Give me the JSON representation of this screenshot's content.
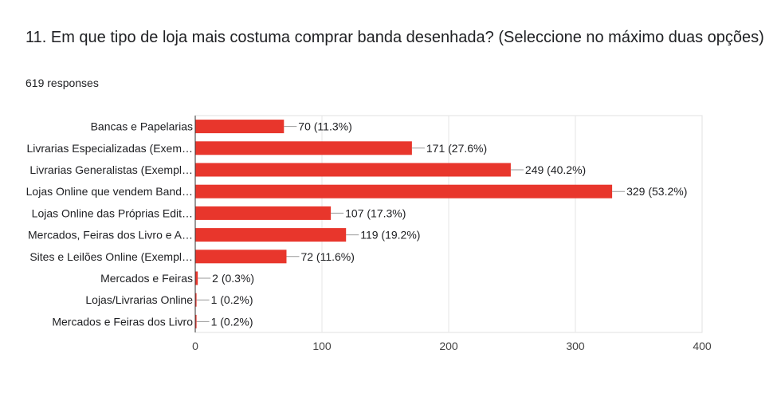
{
  "question": {
    "title": "11. Em que tipo de loja mais costuma comprar banda desenhada? (Seleccione no máximo duas opções)",
    "responses": "619 responses"
  },
  "chart_data": {
    "type": "bar",
    "orientation": "horizontal",
    "bar_color": "#e8362c",
    "grid": true,
    "xlim": [
      0,
      400
    ],
    "xticks": [
      "0",
      "100",
      "200",
      "300",
      "400"
    ],
    "categories": [
      "Bancas e Papelarias",
      "Livrarias Especializadas (Exem…",
      "Livrarias Generalistas (Exempl…",
      "Lojas Online que vendem Band…",
      "Lojas Online das Próprias Edit…",
      "Mercados, Feiras dos Livro e A…",
      "Sites e Leilões Online (Exempl…",
      "Mercados e Feiras",
      "Lojas/Livrarias Online",
      "Mercados e Feiras dos Livro"
    ],
    "values": [
      70,
      171,
      249,
      329,
      107,
      119,
      72,
      2,
      1,
      1
    ],
    "labels": [
      "70 (11.3%)",
      "171 (27.6%)",
      "249 (40.2%)",
      "329 (53.2%)",
      "107 (17.3%)",
      "119 (19.2%)",
      "72 (11.6%)",
      "2 (0.3%)",
      "1 (0.2%)",
      "1 (0.2%)"
    ]
  }
}
